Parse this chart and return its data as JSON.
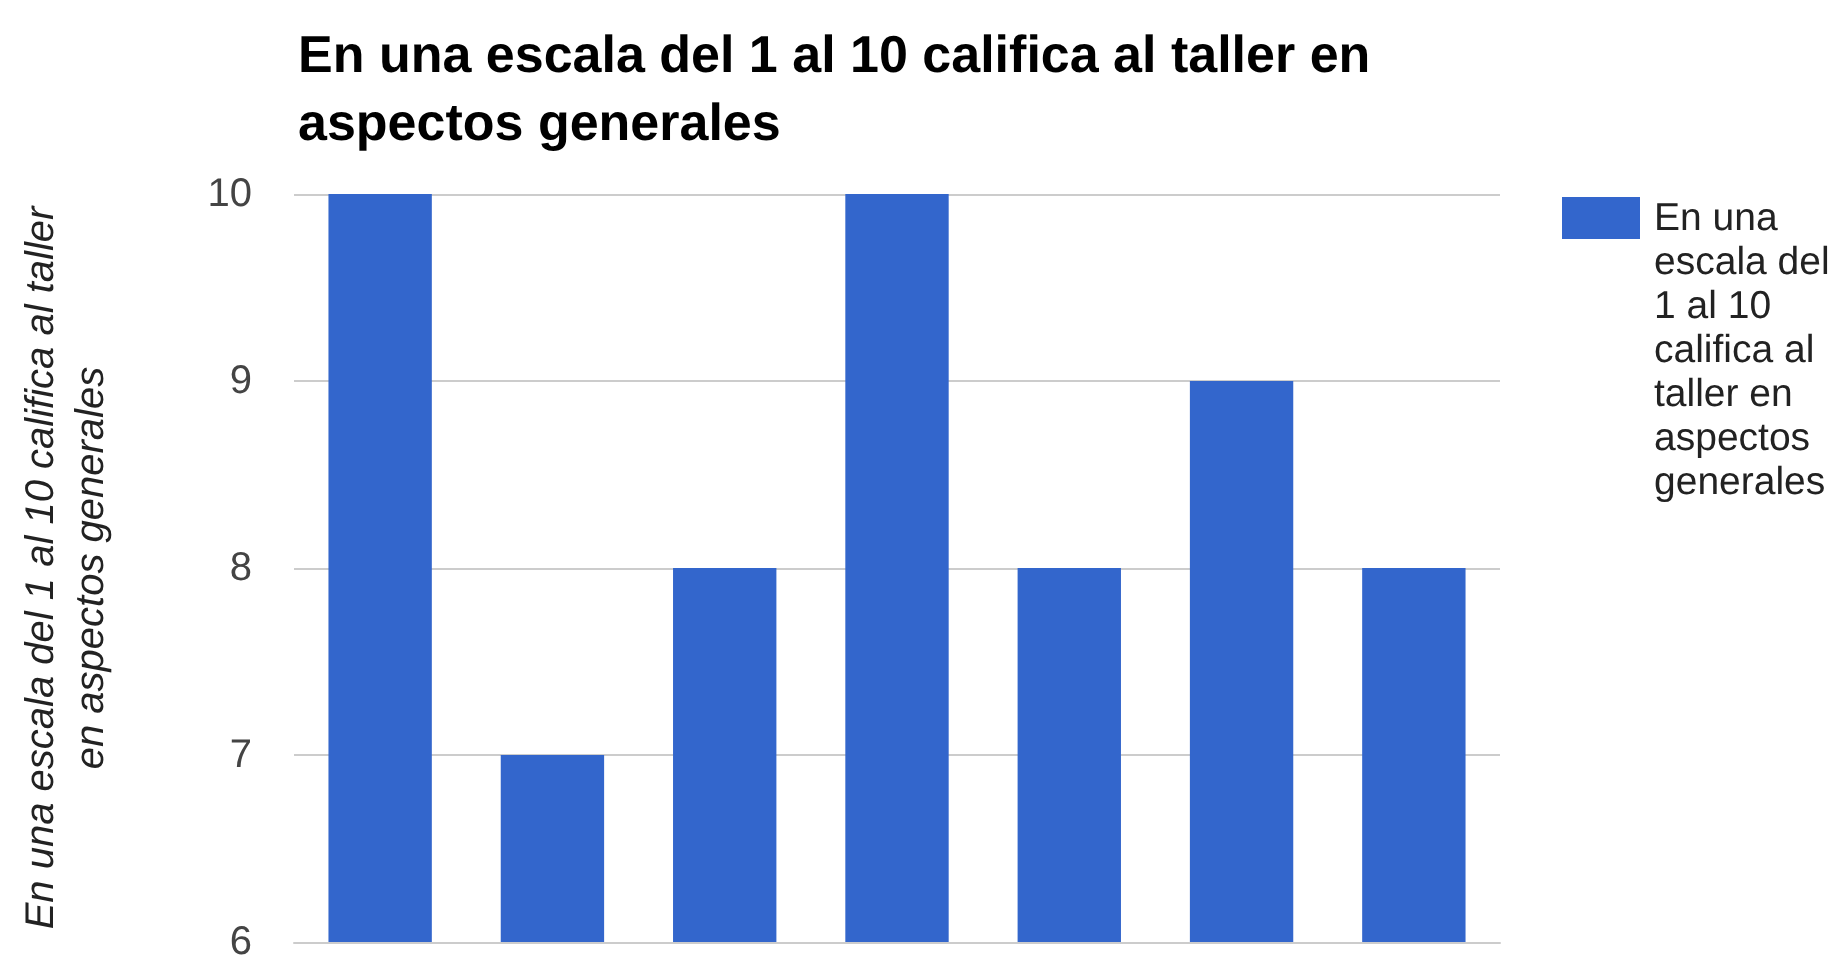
{
  "chart_data": {
    "type": "bar",
    "title": "En una escala del 1 al 10 califica al taller en aspectos generales",
    "ylabel": "En una escala del 1 al 10 califica al taller en aspectos generales",
    "categories": [
      null,
      null,
      null,
      null,
      null,
      null,
      null
    ],
    "series": [
      {
        "name": "En una escala del 1 al 10 califica al taller en aspectos generales",
        "color": "#3366cc",
        "values": [
          10,
          7,
          8,
          10,
          8,
          9,
          8
        ]
      }
    ],
    "ylim": [
      6,
      10
    ],
    "yticks": [
      6,
      7,
      8,
      9,
      10
    ],
    "grid": "y",
    "legend": "top right"
  }
}
